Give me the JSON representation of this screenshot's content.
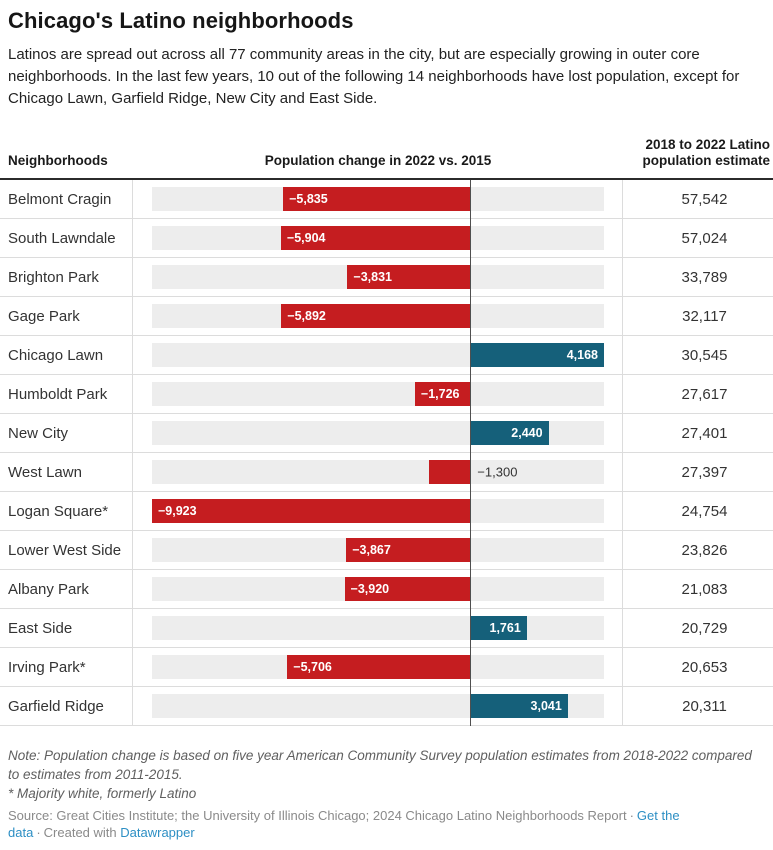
{
  "header": {
    "title": "Chicago's Latino neighborhoods",
    "description": "Latinos are spread out across all 77 community areas in the city, but are especially growing in outer core neighborhoods. In the last few years, 10 out of the following 14 neighborhoods have lost population, except for Chicago Lawn, Garfield Ridge, New City and East Side."
  },
  "table": {
    "columns": {
      "neighborhoods": "Neighborhoods",
      "change": "Population change in 2022 vs. 2015",
      "estimate": "2018 to 2022 Latino population estimate"
    }
  },
  "colors": {
    "negative_bar": "#c51d20",
    "positive_bar": "#15607a",
    "bar_track": "#ededed",
    "link": "#2d8fc4"
  },
  "rows": [
    {
      "name": "Belmont Cragin",
      "change": -5835,
      "change_label": "−5,835",
      "estimate": "57,542"
    },
    {
      "name": "South Lawndale",
      "change": -5904,
      "change_label": "−5,904",
      "estimate": "57,024"
    },
    {
      "name": "Brighton Park",
      "change": -3831,
      "change_label": "−3,831",
      "estimate": "33,789"
    },
    {
      "name": "Gage Park",
      "change": -5892,
      "change_label": "−5,892",
      "estimate": "32,117"
    },
    {
      "name": "Chicago Lawn",
      "change": 4168,
      "change_label": "4,168",
      "estimate": "30,545"
    },
    {
      "name": "Humboldt Park",
      "change": -1726,
      "change_label": "−1,726",
      "estimate": "27,617"
    },
    {
      "name": "New City",
      "change": 2440,
      "change_label": "2,440",
      "estimate": "27,401"
    },
    {
      "name": "West Lawn",
      "change": -1300,
      "change_label": "−1,300",
      "estimate": "27,397"
    },
    {
      "name": "Logan Square*",
      "change": -9923,
      "change_label": "−9,923",
      "estimate": "24,754"
    },
    {
      "name": "Lower West Side",
      "change": -3867,
      "change_label": "−3,867",
      "estimate": "23,826"
    },
    {
      "name": "Albany Park",
      "change": -3920,
      "change_label": "−3,920",
      "estimate": "21,083"
    },
    {
      "name": "East Side",
      "change": 1761,
      "change_label": "1,761",
      "estimate": "20,729"
    },
    {
      "name": "Irving Park*",
      "change": -5706,
      "change_label": "−5,706",
      "estimate": "20,653"
    },
    {
      "name": "Garfield Ridge",
      "change": 3041,
      "change_label": "3,041",
      "estimate": "20,311"
    }
  ],
  "chart_data": {
    "type": "bar",
    "orientation": "horizontal",
    "title": "Chicago's Latino neighborhoods",
    "categories": [
      "Belmont Cragin",
      "South Lawndale",
      "Brighton Park",
      "Gage Park",
      "Chicago Lawn",
      "Humboldt Park",
      "New City",
      "West Lawn",
      "Logan Square*",
      "Lower West Side",
      "Albany Park",
      "East Side",
      "Irving Park*",
      "Garfield Ridge"
    ],
    "series": [
      {
        "name": "Population change in 2022 vs. 2015",
        "values": [
          -5835,
          -5904,
          -3831,
          -5892,
          4168,
          -1726,
          2440,
          -1300,
          -9923,
          -3867,
          -3920,
          1761,
          -5706,
          3041
        ]
      },
      {
        "name": "2018 to 2022 Latino population estimate",
        "values": [
          57542,
          57024,
          33789,
          32117,
          30545,
          27617,
          27401,
          27397,
          24754,
          23826,
          21083,
          20729,
          20653,
          20311
        ]
      }
    ],
    "xlim": [
      -9923,
      4168
    ],
    "zero_line": true,
    "grid": false,
    "legend": false,
    "negative_color": "#c51d20",
    "positive_color": "#15607a"
  },
  "footer": {
    "note": "Note: Population change is based on five year American Community Survey population estimates from 2018-2022 compared to estimates from 2011-2015.",
    "asterisk_note": "* Majority white, formerly Latino",
    "source": "Source: Great Cities Institute; the University of Illinois Chicago; 2024 Chicago Latino Neighborhoods Report",
    "separator": "·",
    "get_data_link": "Get the data",
    "created_with": "Created with",
    "datawrapper_link": "Datawrapper"
  }
}
